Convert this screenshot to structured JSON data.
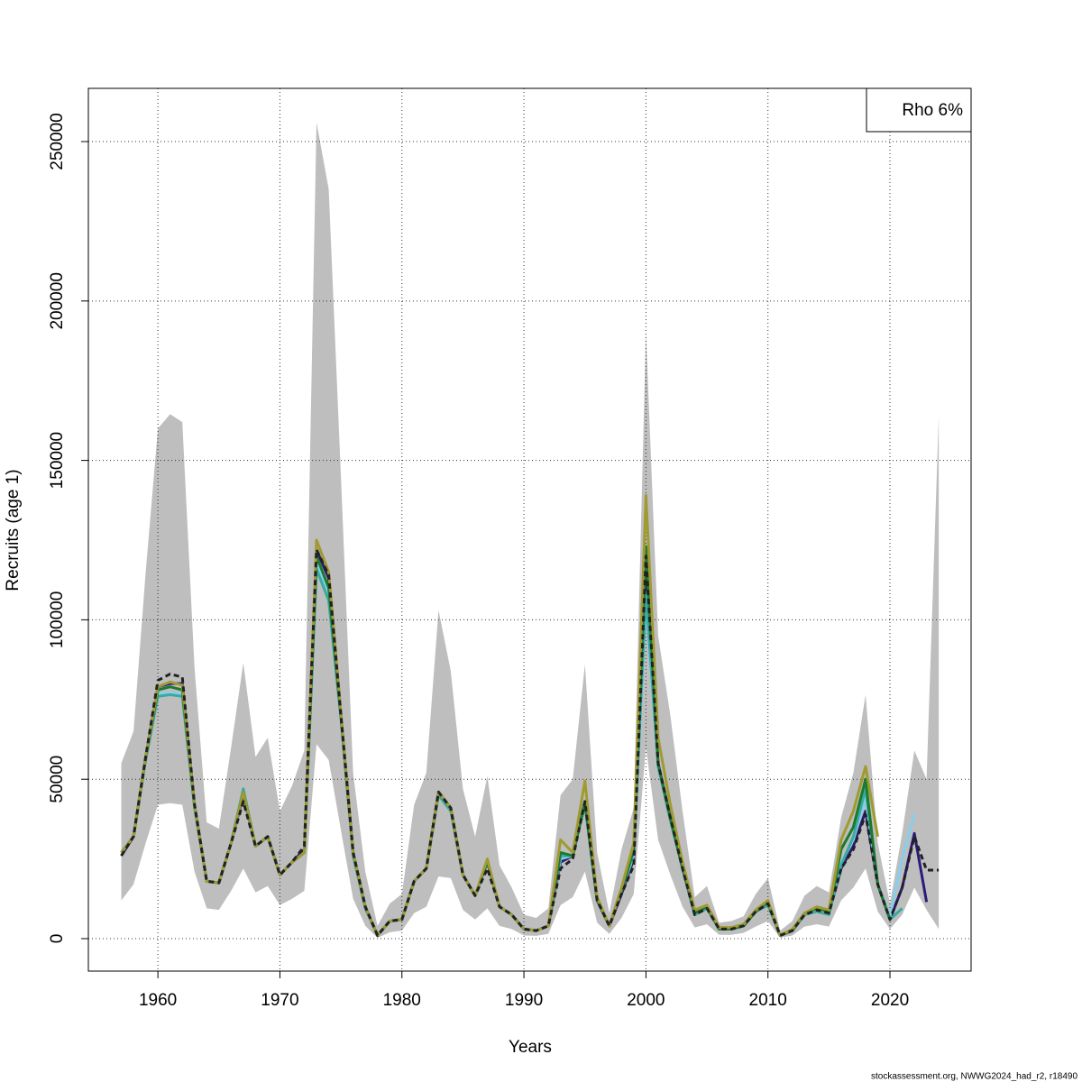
{
  "chart_data": {
    "type": "line",
    "xlabel": "Years",
    "ylabel": "Recruits (age 1)",
    "footer": "stockassessment.org, NWWG2024_had_r2, r18490",
    "legend": {
      "text": "Rho 6%",
      "position": "topright"
    },
    "grid": true,
    "xlim": [
      1954.3,
      2026.65
    ],
    "xticks": [
      1960,
      1970,
      1980,
      1990,
      2000,
      2010,
      2020
    ],
    "ylim": [
      -10180,
      266690
    ],
    "yticks": [
      0,
      50000,
      100000,
      150000,
      200000,
      250000
    ],
    "x": [
      1957,
      1958,
      1959,
      1960,
      1961,
      1962,
      1963,
      1964,
      1965,
      1966,
      1967,
      1968,
      1969,
      1970,
      1971,
      1972,
      1973,
      1974,
      1975,
      1976,
      1977,
      1978,
      1979,
      1980,
      1981,
      1982,
      1983,
      1984,
      1985,
      1986,
      1987,
      1988,
      1989,
      1990,
      1991,
      1992,
      1993,
      1994,
      1995,
      1996,
      1997,
      1998,
      1999,
      2000,
      2001,
      2002,
      2003,
      2004,
      2005,
      2006,
      2007,
      2008,
      2009,
      2010,
      2011,
      2012,
      2013,
      2014,
      2015,
      2016,
      2017,
      2018,
      2019,
      2020,
      2021,
      2022,
      2023,
      2024
    ],
    "band": {
      "color": "#bebebe",
      "lower": [
        12000,
        17000,
        30000,
        42000,
        42500,
        42000,
        21000,
        9500,
        9000,
        15000,
        22000,
        14500,
        16500,
        10500,
        12500,
        15000,
        61000,
        56000,
        34000,
        12500,
        4000,
        200,
        2000,
        2500,
        8000,
        10000,
        19500,
        19000,
        9000,
        6000,
        9500,
        4000,
        3000,
        1000,
        900,
        1500,
        10500,
        13000,
        21000,
        5000,
        1500,
        6500,
        14000,
        60000,
        31000,
        20000,
        10000,
        3500,
        4500,
        1200,
        1200,
        1800,
        3800,
        5500,
        300,
        1000,
        3800,
        4500,
        3800,
        12000,
        16000,
        22000,
        8500,
        3000,
        7500,
        16000,
        9000,
        3000
      ],
      "upper": [
        55000,
        65000,
        115000,
        160000,
        164500,
        162000,
        85000,
        36500,
        34500,
        60000,
        86500,
        57000,
        63000,
        40000,
        48000,
        59000,
        256000,
        235000,
        145000,
        52000,
        21000,
        4000,
        11000,
        14000,
        42000,
        52000,
        103000,
        84000,
        47000,
        32000,
        51000,
        23000,
        16000,
        7500,
        6500,
        9500,
        45000,
        50000,
        86000,
        27000,
        8000,
        28000,
        41000,
        190000,
        95000,
        70000,
        40000,
        13000,
        16500,
        5000,
        5500,
        7000,
        14000,
        19000,
        2500,
        5500,
        13500,
        16500,
        14500,
        38000,
        52000,
        76500,
        30000,
        11000,
        33000,
        59000,
        50000,
        164000
      ]
    },
    "series": [
      {
        "color": "#2b1a7a",
        "dashed": false,
        "values": [
          26000,
          32000,
          57000,
          79000,
          80000,
          80000,
          42000,
          18000,
          17500,
          30000,
          45000,
          29000,
          32000,
          20000,
          24000,
          28000,
          122000,
          113000,
          70000,
          27000,
          10000,
          1000,
          5500,
          6000,
          18000,
          22000,
          46000,
          41000,
          20000,
          13500,
          24000,
          10000,
          7500,
          3000,
          2500,
          4000,
          24000,
          26000,
          43000,
          12000,
          4000,
          14000,
          25000,
          118000,
          55000,
          38000,
          22000,
          7500,
          9500,
          3000,
          3000,
          4000,
          8500,
          11000,
          1000,
          2500,
          7500,
          9000,
          8000,
          22000,
          29000,
          40000,
          17000,
          6000,
          16000,
          33000,
          11500,
          null
        ]
      },
      {
        "color": "#87ceeb",
        "dashed": false,
        "values": [
          27000,
          32000,
          57000,
          77000,
          77000,
          77000,
          42000,
          18000,
          17500,
          30000,
          46000,
          29000,
          32000,
          20000,
          24000,
          27000,
          118000,
          108000,
          70000,
          27000,
          10000,
          1000,
          5500,
          6000,
          18000,
          22000,
          45000,
          41000,
          20000,
          13500,
          24000,
          10000,
          7500,
          3000,
          2500,
          4000,
          25000,
          26000,
          43000,
          12000,
          4000,
          15000,
          26000,
          105000,
          54000,
          38000,
          22000,
          7500,
          9500,
          3000,
          3000,
          4000,
          8500,
          11000,
          1000,
          2500,
          7500,
          9000,
          8000,
          24000,
          31000,
          44000,
          17000,
          7000,
          25000,
          39000,
          null,
          null
        ]
      },
      {
        "color": "#3aaaa0",
        "dashed": false,
        "values": [
          27000,
          32000,
          56000,
          76000,
          76500,
          76000,
          41000,
          18000,
          17500,
          30000,
          47000,
          29000,
          32000,
          20000,
          24000,
          27000,
          116000,
          106000,
          69000,
          26000,
          9500,
          1000,
          5500,
          6000,
          18000,
          22000,
          45000,
          40000,
          20000,
          13500,
          24000,
          10000,
          7500,
          3000,
          2500,
          4000,
          26000,
          26000,
          42000,
          12000,
          4000,
          15000,
          27000,
          108000,
          54000,
          37000,
          22000,
          7500,
          9500,
          3000,
          3000,
          4000,
          8500,
          10500,
          1000,
          2500,
          7500,
          8500,
          7500,
          23000,
          32000,
          47000,
          17000,
          6000,
          9500,
          null,
          null,
          null
        ]
      },
      {
        "color": "#1a7a2e",
        "dashed": false,
        "values": [
          27000,
          32000,
          57000,
          78000,
          79000,
          78000,
          42000,
          18000,
          17500,
          30000,
          46000,
          29000,
          32000,
          20000,
          24000,
          27000,
          120000,
          110000,
          70000,
          27000,
          10000,
          1000,
          5500,
          6000,
          18000,
          22000,
          46000,
          41000,
          20000,
          13500,
          24000,
          10000,
          7500,
          3000,
          2500,
          4000,
          27000,
          26000,
          43000,
          12000,
          4000,
          15000,
          28000,
          123000,
          55000,
          38000,
          22000,
          8000,
          10000,
          3000,
          3000,
          4000,
          8500,
          11500,
          1000,
          2500,
          8000,
          9500,
          8500,
          28000,
          35000,
          50000,
          17000,
          6000,
          null,
          null,
          null,
          null
        ]
      },
      {
        "color": "#a09a30",
        "dashed": false,
        "values": [
          27000,
          32000,
          57000,
          79000,
          80500,
          79500,
          42000,
          18000,
          17500,
          30000,
          46000,
          29000,
          32000,
          20000,
          24000,
          27000,
          125000,
          115000,
          71000,
          27000,
          10000,
          1000,
          5500,
          6000,
          18000,
          22000,
          46000,
          41000,
          20000,
          13500,
          25000,
          10000,
          7500,
          3000,
          2500,
          4000,
          31000,
          27000,
          49500,
          13000,
          4000,
          16000,
          30000,
          139000,
          63000,
          42000,
          24000,
          9000,
          10500,
          3500,
          3500,
          4500,
          9000,
          12000,
          1000,
          3000,
          8000,
          10000,
          9000,
          31000,
          40000,
          54000,
          32000,
          null,
          null,
          null,
          null,
          null
        ]
      },
      {
        "color": "#222222",
        "dashed": true,
        "values": [
          26000,
          32000,
          57000,
          81000,
          83000,
          82000,
          42000,
          18000,
          17500,
          30000,
          43000,
          29000,
          32000,
          20000,
          24000,
          29000,
          122000,
          114000,
          70000,
          27000,
          10000,
          1000,
          5500,
          6000,
          18000,
          22000,
          46000,
          41000,
          20000,
          13500,
          22000,
          10000,
          7500,
          3000,
          2500,
          4000,
          22000,
          25000,
          43000,
          12000,
          4000,
          14000,
          23000,
          120000,
          55000,
          38000,
          22000,
          7500,
          9500,
          3000,
          3000,
          4000,
          8500,
          11000,
          1000,
          2500,
          7500,
          9000,
          8000,
          22000,
          28000,
          39000,
          17000,
          6000,
          16000,
          32000,
          21500,
          21500
        ]
      }
    ]
  }
}
